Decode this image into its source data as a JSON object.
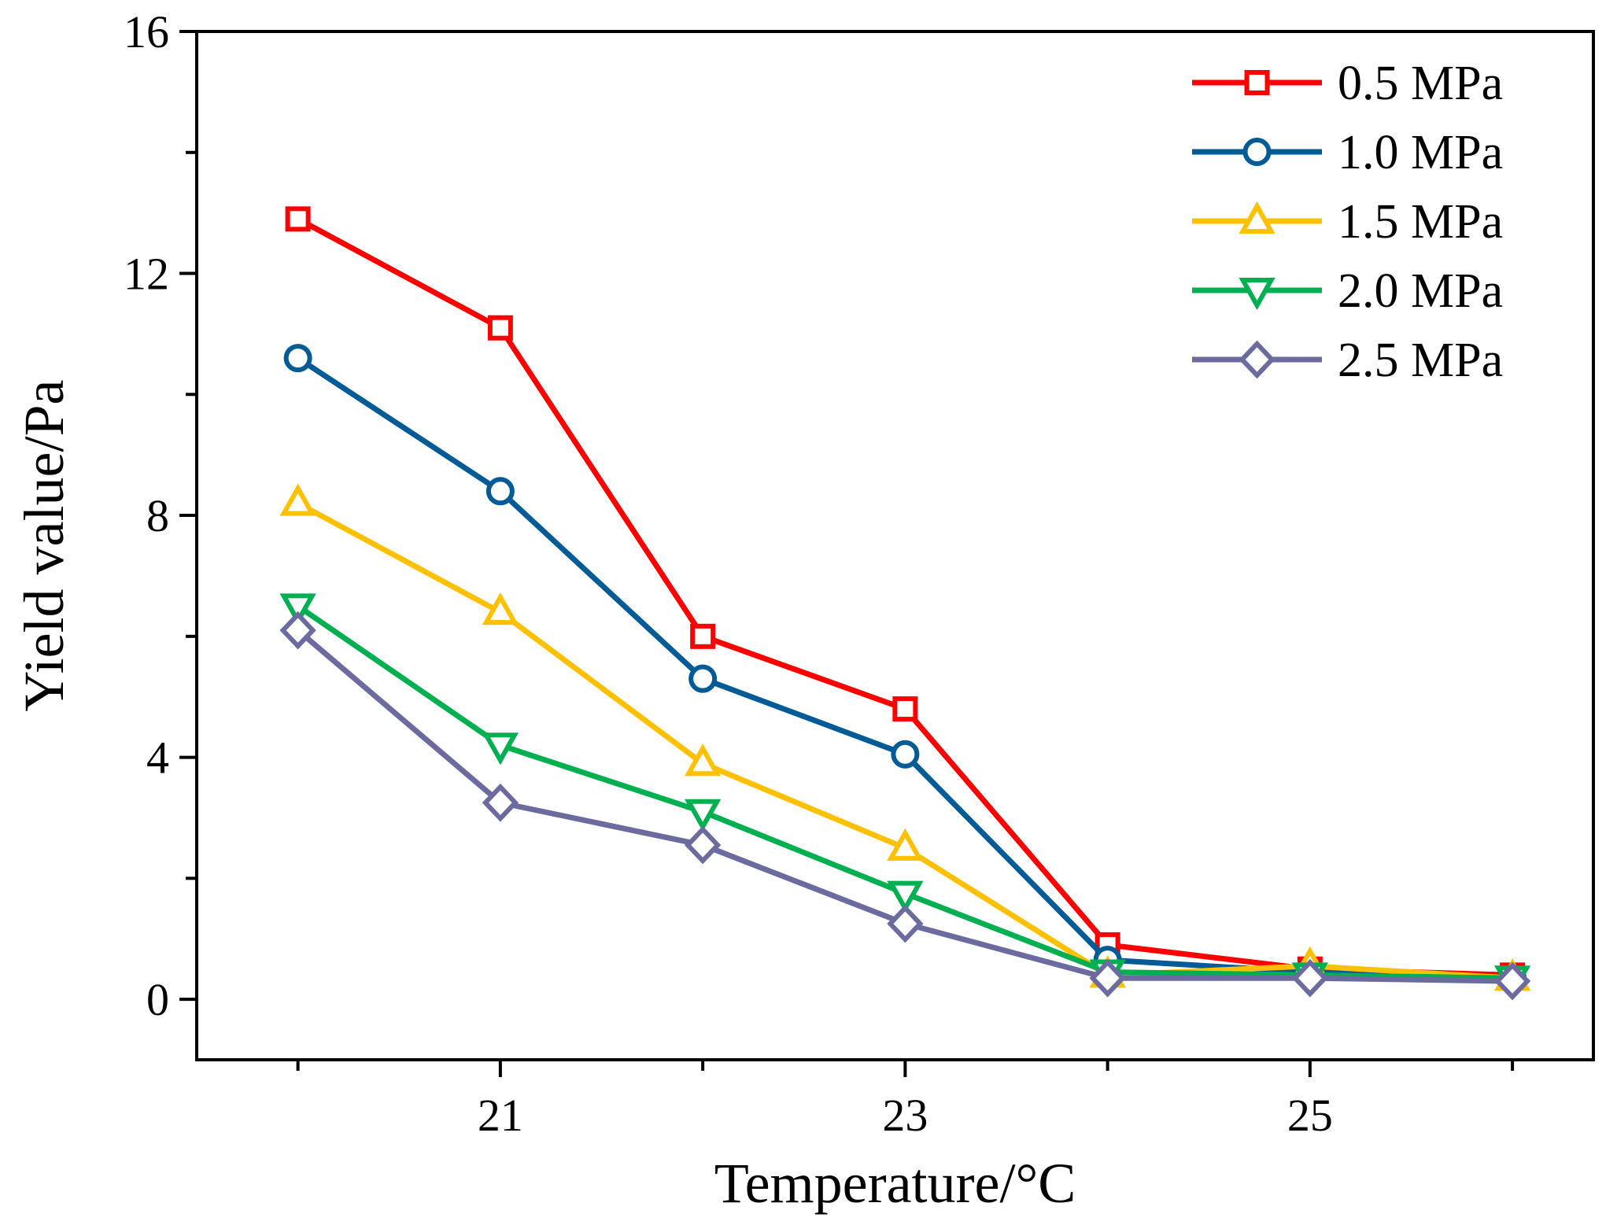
{
  "chart_data": {
    "type": "line",
    "title": "",
    "xlabel": "Temperature/°C",
    "ylabel": "Yield value/Pa",
    "x": [
      20,
      21,
      22,
      23,
      24,
      25,
      26
    ],
    "xlim": [
      19.5,
      26.4
    ],
    "ylim": [
      -1,
      16
    ],
    "xticks": [
      21,
      23,
      25
    ],
    "yticks": [
      0,
      4,
      8,
      12,
      16
    ],
    "x_minor_ticks": [
      20,
      22,
      24,
      26
    ],
    "y_minor_ticks": [
      2,
      6,
      10,
      14
    ],
    "grid": false,
    "legend_position": "top-right",
    "series": [
      {
        "name": "0.5 MPa",
        "marker": "square",
        "color": "#ff0000",
        "values": [
          12.9,
          11.1,
          6.0,
          4.8,
          0.9,
          0.5,
          0.4
        ]
      },
      {
        "name": "1.0 MPa",
        "marker": "circle",
        "color": "#005b96",
        "values": [
          10.6,
          8.4,
          5.3,
          4.05,
          0.65,
          0.45,
          0.35
        ]
      },
      {
        "name": "1.5 MPa",
        "marker": "triangle-up",
        "color": "#ffc000",
        "values": [
          8.2,
          6.4,
          3.9,
          2.5,
          0.4,
          0.55,
          0.35
        ]
      },
      {
        "name": "2.0 MPa",
        "marker": "triangle-down",
        "color": "#00b050",
        "values": [
          6.5,
          4.2,
          3.1,
          1.75,
          0.45,
          0.4,
          0.35
        ]
      },
      {
        "name": "2.5 MPa",
        "marker": "diamond",
        "color": "#6b6ba0",
        "values": [
          6.1,
          3.25,
          2.55,
          1.25,
          0.35,
          0.35,
          0.3
        ]
      }
    ]
  }
}
